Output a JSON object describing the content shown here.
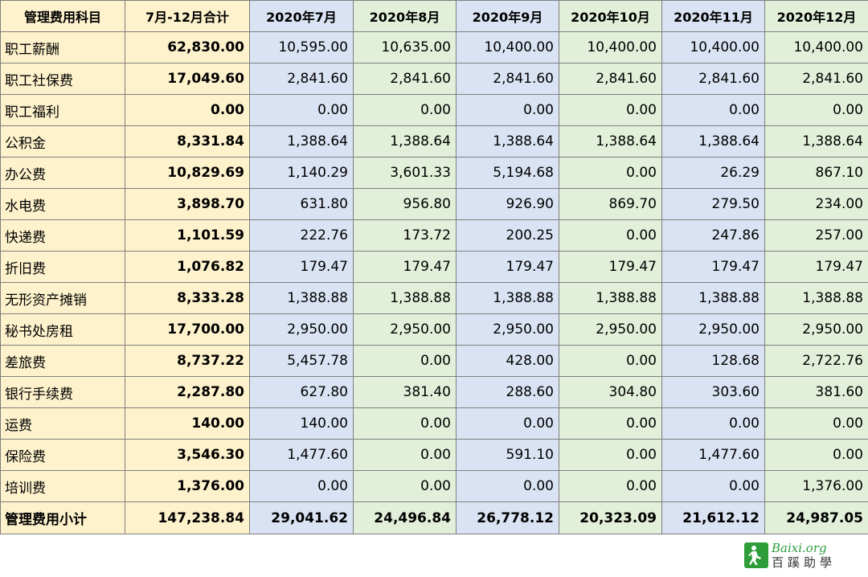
{
  "headers": [
    "管理费用科目",
    "7月-12月合计",
    "2020年7月",
    "2020年8月",
    "2020年9月",
    "2020年10月",
    "2020年11月",
    "2020年12月"
  ],
  "rows": [
    {
      "label": "职工薪酬",
      "total": "62,830.00",
      "months": [
        "10,595.00",
        "10,635.00",
        "10,400.00",
        "10,400.00",
        "10,400.00",
        "10,400.00"
      ]
    },
    {
      "label": "职工社保费",
      "total": "17,049.60",
      "months": [
        "2,841.60",
        "2,841.60",
        "2,841.60",
        "2,841.60",
        "2,841.60",
        "2,841.60"
      ]
    },
    {
      "label": "职工福利",
      "total": "0.00",
      "months": [
        "0.00",
        "0.00",
        "0.00",
        "0.00",
        "0.00",
        "0.00"
      ]
    },
    {
      "label": "公积金",
      "total": "8,331.84",
      "months": [
        "1,388.64",
        "1,388.64",
        "1,388.64",
        "1,388.64",
        "1,388.64",
        "1,388.64"
      ]
    },
    {
      "label": "办公费",
      "total": "10,829.69",
      "months": [
        "1,140.29",
        "3,601.33",
        "5,194.68",
        "0.00",
        "26.29",
        "867.10"
      ]
    },
    {
      "label": "水电费",
      "total": "3,898.70",
      "months": [
        "631.80",
        "956.80",
        "926.90",
        "869.70",
        "279.50",
        "234.00"
      ]
    },
    {
      "label": "快递费",
      "total": "1,101.59",
      "months": [
        "222.76",
        "173.72",
        "200.25",
        "0.00",
        "247.86",
        "257.00"
      ]
    },
    {
      "label": "折旧费",
      "total": "1,076.82",
      "months": [
        "179.47",
        "179.47",
        "179.47",
        "179.47",
        "179.47",
        "179.47"
      ]
    },
    {
      "label": "无形资产摊销",
      "total": "8,333.28",
      "months": [
        "1,388.88",
        "1,388.88",
        "1,388.88",
        "1,388.88",
        "1,388.88",
        "1,388.88"
      ]
    },
    {
      "label": "秘书处房租",
      "total": "17,700.00",
      "months": [
        "2,950.00",
        "2,950.00",
        "2,950.00",
        "2,950.00",
        "2,950.00",
        "2,950.00"
      ]
    },
    {
      "label": "差旅费",
      "total": "8,737.22",
      "months": [
        "5,457.78",
        "0.00",
        "428.00",
        "0.00",
        "128.68",
        "2,722.76"
      ]
    },
    {
      "label": "银行手续费",
      "total": "2,287.80",
      "months": [
        "627.80",
        "381.40",
        "288.60",
        "304.80",
        "303.60",
        "381.60"
      ]
    },
    {
      "label": "运费",
      "total": "140.00",
      "months": [
        "140.00",
        "0.00",
        "0.00",
        "0.00",
        "0.00",
        "0.00"
      ]
    },
    {
      "label": "保险费",
      "total": "3,546.30",
      "months": [
        "1,477.60",
        "0.00",
        "591.10",
        "0.00",
        "1,477.60",
        "0.00"
      ]
    },
    {
      "label": "培训费",
      "total": "1,376.00",
      "months": [
        "0.00",
        "0.00",
        "0.00",
        "0.00",
        "0.00",
        "1,376.00"
      ]
    }
  ],
  "subtotal": {
    "label": "管理费用小计",
    "total": "147,238.84",
    "months": [
      "29,041.62",
      "24,496.84",
      "26,778.12",
      "20,323.09",
      "21,612.12",
      "24,987.05"
    ]
  },
  "watermark": {
    "top": "Baixi.org",
    "bottom": "百蹊助學",
    "icon": "person-walking-icon",
    "color": "#2e9d3a"
  },
  "colors": {
    "tan": "#fef2cc",
    "blue": "#dae3f3",
    "green": "#e2efd9"
  }
}
